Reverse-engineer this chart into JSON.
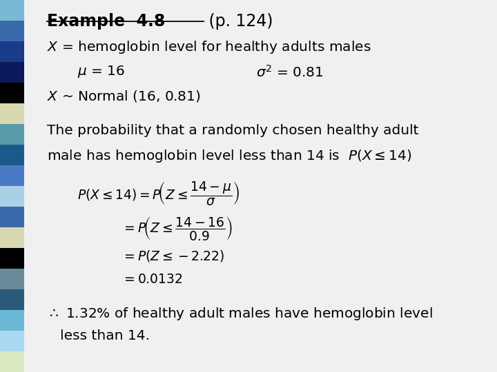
{
  "bg_color": "#f0f0f0",
  "left_bar_colors": [
    "#7ab8d4",
    "#3a6aaa",
    "#1a3a8a",
    "#0a1a5a",
    "#000000",
    "#d8d8b0",
    "#5a9aaa",
    "#1a5a8a",
    "#4a7ac4",
    "#aad0e8",
    "#3a6aaa",
    "#d8d8b0",
    "#000000",
    "#6a8a9a",
    "#2a5a7a",
    "#6ab8d4",
    "#aad8f0",
    "#d8e8c0"
  ],
  "title_bold": "Example  4.8",
  "title_normal": " (p. 124)",
  "line1": "$X$ = hemoglobin level for healthy adults males",
  "line2a": "$\\mu$ = 16",
  "line2b": "$\\sigma^2$ = 0.81",
  "line3": "$X$ ~ Normal (16, 0.81)",
  "para1": "The probability that a randomly chosen healthy adult",
  "para2": "male has hemoglobin level less than 14 is  $P(X \\leq 14)$",
  "eq1": "$P(X \\leq 14)= P\\!\\left(Z \\leq \\dfrac{14-\\mu}{\\sigma}\\right)$",
  "eq2": "$= P\\!\\left(Z \\leq \\dfrac{14-16}{0.9}\\right)$",
  "eq3": "$= P(Z \\leq -2.22)$",
  "eq4": "$= 0.0132$",
  "conc1": "$\\therefore$ 1.32% of healthy adult males have hemoglobin level",
  "conc2": "   less than 14.",
  "fs_title": 17,
  "fs_body": 14.5,
  "fs_eq": 13.5
}
